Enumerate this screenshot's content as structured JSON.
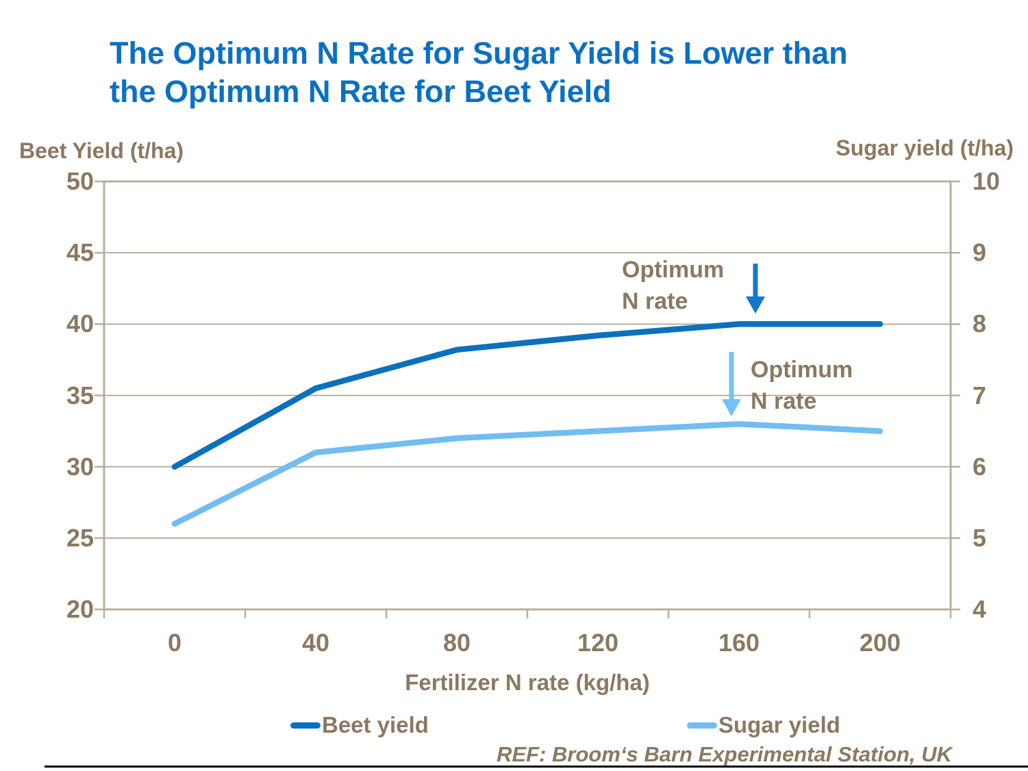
{
  "title": {
    "line1": "The Optimum N Rate for Sugar Yield is Lower than",
    "line2": "the Optimum N Rate for Beet Yield"
  },
  "axes": {
    "left": {
      "title": "Beet Yield (t/ha)",
      "ticks": [
        50,
        45,
        40,
        35,
        30,
        25,
        20
      ]
    },
    "right": {
      "title": "Sugar yield (t/ha)",
      "ticks": [
        10,
        9,
        8,
        7,
        6,
        5,
        4
      ]
    },
    "x": {
      "title": "Fertilizer N rate (kg/ha)",
      "ticks": [
        0,
        40,
        80,
        120,
        160,
        200
      ]
    }
  },
  "chart_data": {
    "type": "line",
    "x": [
      0,
      40,
      80,
      120,
      160,
      200
    ],
    "xlabel": "Fertilizer N rate (kg/ha)",
    "ylabel_left": "Beet Yield (t/ha)",
    "ylabel_right": "Sugar yield (t/ha)",
    "ylim_left": [
      20,
      50
    ],
    "ylim_right": [
      4,
      10
    ],
    "grid": true,
    "legend_position": "bottom",
    "series": [
      {
        "name": "Beet yield",
        "axis": "left",
        "color": "#0b71bd",
        "values": [
          30,
          35.5,
          38.2,
          39.2,
          40,
          40
        ]
      },
      {
        "name": "Sugar yield",
        "axis": "right",
        "color": "#72bdf0",
        "values": [
          5.2,
          6.2,
          6.4,
          6.5,
          6.6,
          6.5
        ]
      }
    ],
    "annotations": [
      {
        "line1": "Optimum",
        "line2": "N rate",
        "series": "Beet yield",
        "arrow_color": "#1478cd",
        "arrow_x_value": 164
      },
      {
        "line1": "Optimum",
        "line2": "N rate",
        "series": "Sugar yield",
        "arrow_color": "#74c2f5",
        "arrow_x_value": 157
      }
    ]
  },
  "legend": {
    "items": [
      {
        "label": "Beet yield",
        "color": "#0b71bd"
      },
      {
        "label": "Sugar yield",
        "color": "#72bdf0"
      }
    ]
  },
  "footer": {
    "ref": "REF: Broom‘s Barn Experimental Station, UK"
  },
  "colors": {
    "title_blue": "#0a70c4",
    "text_brown": "#8a7961",
    "gridline": "#a39a87",
    "axis_frame": "#b9ae9c",
    "bottom_rule": "#000000"
  }
}
